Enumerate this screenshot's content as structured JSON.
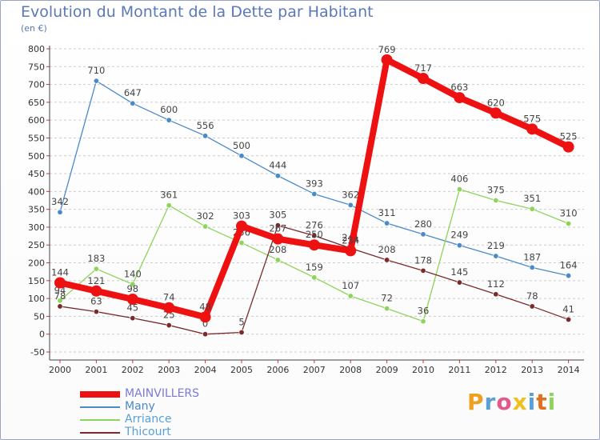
{
  "chart_data": {
    "type": "line",
    "title": "Evolution du Montant de la Dette par Habitant",
    "subtitle": "(en €)",
    "xlabel": "",
    "ylabel": "",
    "x": [
      "2000",
      "2001",
      "2002",
      "2003",
      "2004",
      "2005",
      "2006",
      "2007",
      "2008",
      "2009",
      "2010",
      "2011",
      "2012",
      "2013",
      "2014"
    ],
    "ylim": [
      -50,
      800
    ],
    "yticks": [
      -50,
      0,
      50,
      100,
      150,
      200,
      250,
      300,
      350,
      400,
      450,
      500,
      550,
      600,
      650,
      700,
      750,
      800
    ],
    "grid": "horizontal dashed",
    "legend_position": "bottom-left",
    "series": [
      {
        "name": "Many",
        "color": "#4a8ac8",
        "values": [
          342,
          710,
          647,
          600,
          556,
          500,
          444,
          393,
          362,
          311,
          280,
          249,
          219,
          187,
          164
        ],
        "labels": [
          "342",
          "710",
          "647",
          "600",
          "556",
          "500",
          "444",
          "393",
          "362",
          "311",
          "280",
          "249",
          "219",
          "187",
          "164"
        ]
      },
      {
        "name": "Arriance",
        "color": "#8ed35a",
        "values": [
          94,
          183,
          140,
          361,
          302,
          256,
          208,
          159,
          107,
          72,
          36,
          406,
          375,
          351,
          310
        ],
        "labels": [
          "94",
          "183",
          "140",
          "361",
          "302",
          "256",
          "208",
          "159",
          "107",
          "72",
          "36",
          "406",
          "375",
          "351",
          "310"
        ]
      },
      {
        "name": "Thicourt",
        "color": "#7a2a2a",
        "values": [
          78,
          63,
          45,
          25,
          0,
          5,
          305,
          276,
          241,
          208,
          178,
          145,
          112,
          78,
          41
        ],
        "labels": [
          "78",
          "63",
          "45",
          "25",
          "0",
          "5",
          "305",
          "276",
          "241",
          "208",
          "178",
          "145",
          "112",
          "78",
          "41"
        ]
      },
      {
        "name": "MAINVILLERS",
        "color": "#ee1111",
        "values": [
          144,
          121,
          98,
          74,
          48,
          303,
          267,
          250,
          234,
          769,
          717,
          663,
          620,
          575,
          525
        ],
        "labels": [
          "144",
          "121",
          "98",
          "74",
          "48",
          "303",
          "267",
          "250",
          "234",
          "769",
          "717",
          "663",
          "620",
          "575",
          "525"
        ]
      }
    ]
  },
  "legend": [
    {
      "name": "MAINVILLERS",
      "color": "#ee1111"
    },
    {
      "name": "Many",
      "color": "#4a8ac8"
    },
    {
      "name": "Arriance",
      "color": "#8ed35a"
    },
    {
      "name": "Thicourt",
      "color": "#7a2a2a"
    }
  ],
  "logo": {
    "letters": [
      "P",
      "r",
      "o",
      "x",
      "i",
      "t",
      "i"
    ],
    "colors": [
      "#f0a020",
      "#5aa0d8",
      "#e05a8c",
      "#f0c020",
      "#5aa0d8",
      "#e07020",
      "#8ed35a"
    ]
  }
}
